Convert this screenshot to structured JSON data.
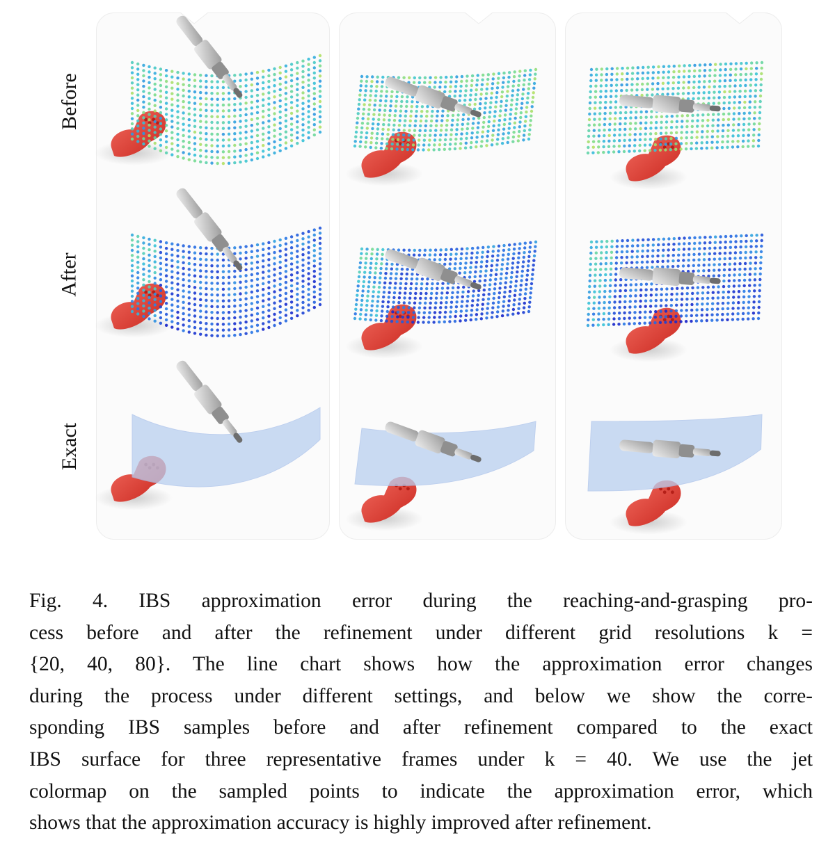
{
  "figure": {
    "row_labels": [
      "Before",
      "After",
      "Exact"
    ],
    "colors": {
      "controller": "#e8443a",
      "hand": "#c8c8c8",
      "jet_low": "#1f2bd0",
      "jet_mid": "#36c2d8",
      "jet_high": "#f2e43a",
      "exact_surface": "#b9cff0"
    }
  },
  "caption": {
    "lines": [
      "Fig. 4. IBS approximation error during the reaching-and-grasping pro-",
      "cess before and after the refinement under different grid resolutions k =",
      "{20, 40, 80}. The line chart shows how the approximation error changes",
      "during the process under different settings, and below we show the corre-",
      "sponding IBS samples before and after refinement compared to the exact",
      "IBS surface for three representative frames under k = 40. We use the jet",
      "colormap on the sampled points to indicate the approximation error, which",
      "shows that the approximation accuracy is highly improved after refinement."
    ]
  }
}
